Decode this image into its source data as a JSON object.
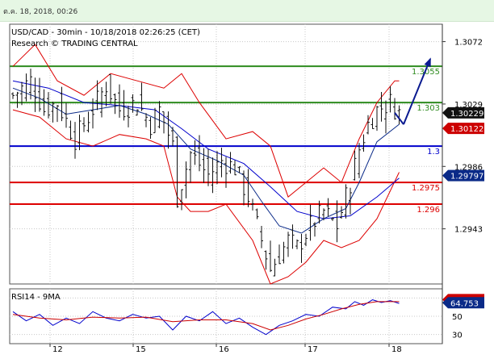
{
  "header": {
    "date": "ต.ค. 18, 2018, 00:26"
  },
  "chart_data": [
    {
      "type": "candlestick",
      "title": "USD/CAD - 30min - 10/18/2018 02:26:25 (CET)",
      "subtitle": "Research © TRADING CENTRAL",
      "ylim": [
        1.2905,
        1.3084
      ],
      "y_ticks": [
        "1.3072",
        "1.3029",
        "1.2986",
        "1.2943"
      ],
      "x_ticks": [
        "12",
        "15",
        "16",
        "17",
        "18"
      ],
      "levels": [
        {
          "label": "1.3055",
          "value": 1.3055,
          "color": "#2e8b1f"
        },
        {
          "label": "1.303",
          "value": 1.303,
          "color": "#2e8b1f"
        },
        {
          "label": "1.3",
          "value": 1.3,
          "color": "#0000cc"
        },
        {
          "label": "1.2975",
          "value": 1.2975,
          "color": "#dd0000"
        },
        {
          "label": "1.296",
          "value": 1.296,
          "color": "#dd0000"
        }
      ],
      "price_tags": [
        {
          "label": "1.30229",
          "value": 1.30229,
          "bg": "#111111"
        },
        {
          "label": "1.30122",
          "value": 1.30122,
          "bg": "#cc0000"
        },
        {
          "label": "1.29797",
          "value": 1.29797,
          "bg": "#0a2a88"
        }
      ],
      "price_path": [
        [
          0,
          1.3035
        ],
        [
          4,
          1.3045
        ],
        [
          7,
          1.3025
        ],
        [
          10,
          1.303
        ],
        [
          14,
          1.3005
        ],
        [
          17,
          1.302
        ],
        [
          21,
          1.3042
        ],
        [
          24,
          1.3025
        ],
        [
          28,
          1.303
        ],
        [
          31,
          1.3015
        ],
        [
          33,
          1.3025
        ],
        [
          36,
          1.3
        ],
        [
          37,
          1.2965
        ],
        [
          40,
          1.2995
        ],
        [
          44,
          1.298
        ],
        [
          47,
          1.299
        ],
        [
          50,
          1.2985
        ],
        [
          53,
          1.2965
        ],
        [
          56,
          1.2935
        ],
        [
          58,
          1.2915
        ],
        [
          62,
          1.2935
        ],
        [
          64,
          1.293
        ],
        [
          67,
          1.2945
        ],
        [
          70,
          1.2955
        ],
        [
          73,
          1.2945
        ],
        [
          76,
          1.2975
        ],
        [
          78,
          1.2998
        ],
        [
          80,
          1.3015
        ],
        [
          82,
          1.3025
        ],
        [
          85,
          1.303
        ],
        [
          87,
          1.3023
        ]
      ],
      "forecast_path": [
        [
          88,
          1.3015
        ],
        [
          94,
          1.306
        ]
      ],
      "ma_fast": [
        [
          0,
          1.304
        ],
        [
          6,
          1.3033
        ],
        [
          12,
          1.3022
        ],
        [
          18,
          1.3025
        ],
        [
          24,
          1.3028
        ],
        [
          30,
          1.3022
        ],
        [
          35,
          1.3015
        ],
        [
          40,
          1.2998
        ],
        [
          46,
          1.299
        ],
        [
          52,
          1.298
        ],
        [
          56,
          1.2962
        ],
        [
          60,
          1.2945
        ],
        [
          65,
          1.294
        ],
        [
          70,
          1.295
        ],
        [
          75,
          1.2957
        ],
        [
          78,
          1.2975
        ],
        [
          82,
          1.3003
        ],
        [
          87,
          1.3015
        ]
      ],
      "ma_slow": [
        [
          0,
          1.3045
        ],
        [
          8,
          1.304
        ],
        [
          16,
          1.303
        ],
        [
          24,
          1.3028
        ],
        [
          32,
          1.3025
        ],
        [
          38,
          1.3012
        ],
        [
          44,
          1.2998
        ],
        [
          52,
          1.2988
        ],
        [
          58,
          1.2972
        ],
        [
          64,
          1.2955
        ],
        [
          70,
          1.295
        ],
        [
          76,
          1.2952
        ],
        [
          82,
          1.2965
        ],
        [
          87,
          1.2978
        ]
      ],
      "band_upper": [
        [
          0,
          1.3055
        ],
        [
          5,
          1.307
        ],
        [
          10,
          1.3045
        ],
        [
          16,
          1.3035
        ],
        [
          22,
          1.305
        ],
        [
          28,
          1.3045
        ],
        [
          34,
          1.304
        ],
        [
          38,
          1.305
        ],
        [
          42,
          1.303
        ],
        [
          48,
          1.3005
        ],
        [
          54,
          1.301
        ],
        [
          58,
          1.3
        ],
        [
          62,
          1.2965
        ],
        [
          66,
          1.2975
        ],
        [
          70,
          1.2985
        ],
        [
          74,
          1.2975
        ],
        [
          78,
          1.3005
        ],
        [
          82,
          1.303
        ],
        [
          86,
          1.3045
        ],
        [
          87,
          1.3045
        ]
      ],
      "band_lower": [
        [
          0,
          1.3025
        ],
        [
          6,
          1.302
        ],
        [
          12,
          1.3005
        ],
        [
          18,
          1.3
        ],
        [
          24,
          1.3008
        ],
        [
          30,
          1.3005
        ],
        [
          34,
          1.3
        ],
        [
          37,
          1.2965
        ],
        [
          40,
          1.2955
        ],
        [
          44,
          1.2955
        ],
        [
          48,
          1.296
        ],
        [
          54,
          1.2935
        ],
        [
          58,
          1.2905
        ],
        [
          62,
          1.291
        ],
        [
          66,
          1.292
        ],
        [
          70,
          1.2935
        ],
        [
          74,
          1.293
        ],
        [
          78,
          1.2935
        ],
        [
          82,
          1.295
        ],
        [
          87,
          1.2982
        ]
      ],
      "total_bars": 88
    },
    {
      "type": "line",
      "title": "RSI14 - 9MA",
      "ylim": [
        20,
        80
      ],
      "y_ticks": [
        "70",
        "50",
        "30"
      ],
      "value_tags": [
        {
          "label": "68.1889",
          "value": 68.19,
          "bg": "#cc0000"
        },
        {
          "label": "64.753",
          "value": 64.75,
          "bg": "#0a2a88"
        }
      ],
      "series": [
        {
          "color": "#0000cc",
          "points": [
            [
              0,
              55
            ],
            [
              3,
              45
            ],
            [
              6,
              52
            ],
            [
              9,
              40
            ],
            [
              12,
              48
            ],
            [
              15,
              42
            ],
            [
              18,
              55
            ],
            [
              21,
              48
            ],
            [
              24,
              45
            ],
            [
              27,
              52
            ],
            [
              30,
              48
            ],
            [
              33,
              50
            ],
            [
              36,
              35
            ],
            [
              39,
              50
            ],
            [
              42,
              45
            ],
            [
              45,
              55
            ],
            [
              48,
              42
            ],
            [
              51,
              48
            ],
            [
              54,
              38
            ],
            [
              57,
              30
            ],
            [
              60,
              40
            ],
            [
              63,
              45
            ],
            [
              66,
              52
            ],
            [
              69,
              50
            ],
            [
              72,
              60
            ],
            [
              75,
              58
            ],
            [
              77,
              66
            ],
            [
              79,
              62
            ],
            [
              81,
              68
            ],
            [
              83,
              65
            ],
            [
              85,
              67
            ],
            [
              87,
              64
            ]
          ]
        },
        {
          "color": "#cc0000",
          "points": [
            [
              0,
              52
            ],
            [
              6,
              48
            ],
            [
              12,
              46
            ],
            [
              18,
              49
            ],
            [
              24,
              48
            ],
            [
              30,
              49
            ],
            [
              36,
              44
            ],
            [
              42,
              46
            ],
            [
              48,
              46
            ],
            [
              54,
              42
            ],
            [
              58,
              35
            ],
            [
              62,
              40
            ],
            [
              66,
              47
            ],
            [
              70,
              52
            ],
            [
              74,
              58
            ],
            [
              78,
              63
            ],
            [
              82,
              66
            ],
            [
              87,
              66
            ]
          ]
        }
      ],
      "x_ticks": [
        "12",
        "15",
        "16",
        "17",
        "18"
      ]
    }
  ]
}
